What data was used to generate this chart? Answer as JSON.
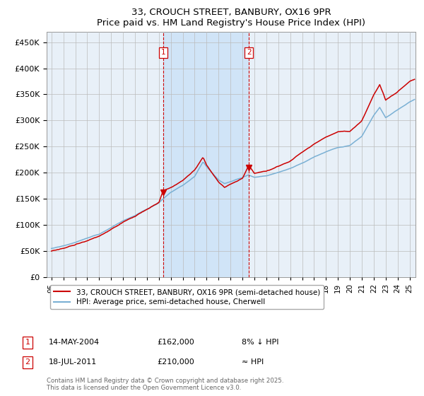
{
  "title": "33, CROUCH STREET, BANBURY, OX16 9PR",
  "subtitle": "Price paid vs. HM Land Registry's House Price Index (HPI)",
  "legend_line1": "33, CROUCH STREET, BANBURY, OX16 9PR (semi-detached house)",
  "legend_line2": "HPI: Average price, semi-detached house, Cherwell",
  "annotation1_label": "1",
  "annotation1_date": "14-MAY-2004",
  "annotation1_price": "£162,000",
  "annotation1_hpi": "8% ↓ HPI",
  "annotation2_label": "2",
  "annotation2_date": "18-JUL-2011",
  "annotation2_price": "£210,000",
  "annotation2_hpi": "≈ HPI",
  "footer": "Contains HM Land Registry data © Crown copyright and database right 2025.\nThis data is licensed under the Open Government Licence v3.0.",
  "purchase1_year": 2004.37,
  "purchase1_price": 162000,
  "purchase2_year": 2011.54,
  "purchase2_price": 210000,
  "hpi_color": "#7ab0d4",
  "price_color": "#cc0000",
  "bg_color": "#e8f0f8",
  "shade_color": "#d0e4f7",
  "grid_color": "#bbbbbb",
  "ylim": [
    0,
    470000
  ],
  "yticks": [
    0,
    50000,
    100000,
    150000,
    200000,
    250000,
    300000,
    350000,
    400000,
    450000
  ],
  "xlim_start": 1994.6,
  "xlim_end": 2025.5
}
